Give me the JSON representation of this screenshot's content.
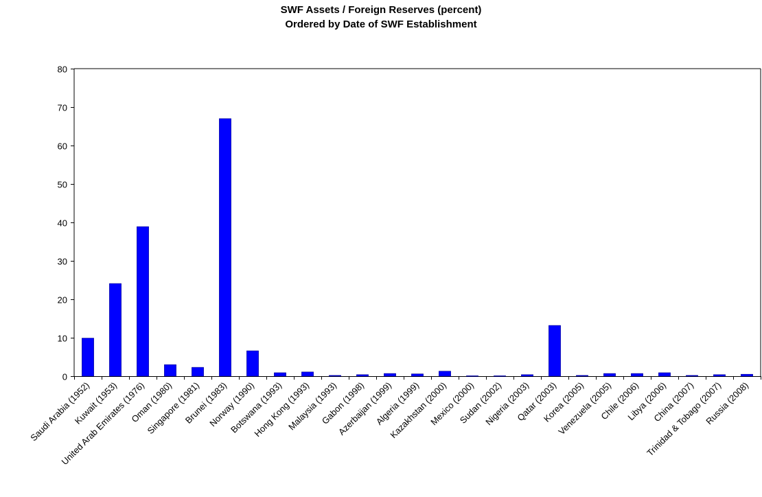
{
  "chart_data": {
    "type": "bar",
    "title": "SWF Assets / Foreign Reserves (percent)",
    "subtitle": "Ordered by Date of SWF Establishment",
    "xlabel": "",
    "ylabel": "",
    "ylim": [
      0,
      80
    ],
    "yticks": [
      0,
      10,
      20,
      30,
      40,
      50,
      60,
      70,
      80
    ],
    "grid": false,
    "bar_color": "#0000FF",
    "categories": [
      "Saudi Arabia (1952)",
      "Kuwait (1953)",
      "United Arab Emirates (1976)",
      "Oman (1980)",
      "Singapore (1981)",
      "Brunei (1983)",
      "Norway (1990)",
      "Botswana (1993)",
      "Hong Kong (1993)",
      "Malaysia (1993)",
      "Gabon (1998)",
      "Azerbaijan (1999)",
      "Algeria (1999)",
      "Kazakhstan (2000)",
      "Mexico (2000)",
      "Sudan (2002)",
      "Nigeria (2003)",
      "Qatar (2003)",
      "Korea (2005)",
      "Venezuela (2005)",
      "Chile (2006)",
      "Libya (2006)",
      "China (2007)",
      "Trinidad & Tobago (2007)",
      "Russia (2008)"
    ],
    "values": [
      9.9,
      24.1,
      38.9,
      3.0,
      2.3,
      67.0,
      6.6,
      0.9,
      1.1,
      0.2,
      0.4,
      0.7,
      0.6,
      1.3,
      0.1,
      0.1,
      0.4,
      13.2,
      0.2,
      0.7,
      0.7,
      0.9,
      0.2,
      0.4,
      0.5
    ]
  }
}
